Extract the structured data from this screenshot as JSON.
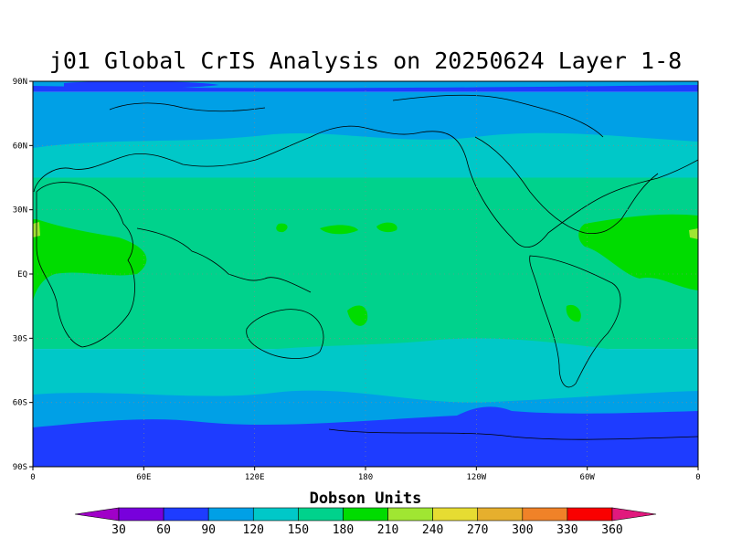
{
  "title": "j01 Global CrIS Analysis on 20250624 Layer 1-8",
  "units_label": "Dobson Units",
  "lat_ticks": [
    "90N",
    "60N",
    "30N",
    "EQ",
    "30S",
    "60S",
    "90S"
  ],
  "lon_ticks": [
    "0",
    "60E",
    "120E",
    "180",
    "120W",
    "60W",
    "0"
  ],
  "colorbar": {
    "values": [
      "30",
      "60",
      "90",
      "120",
      "150",
      "180",
      "210",
      "240",
      "270",
      "300",
      "330",
      "360"
    ],
    "colors": [
      "#a000c8",
      "#7800dc",
      "#1e3cff",
      "#00a0e6",
      "#00c8c8",
      "#00d28c",
      "#00dc00",
      "#a0e632",
      "#e6dc32",
      "#e6af2d",
      "#f08228",
      "#fa0000",
      "#e1197d"
    ]
  },
  "chart_data": {
    "type": "heatmap",
    "title": "j01 Global CrIS Analysis on 20250624 Layer 1-8",
    "colorbar_label": "Dobson Units",
    "x_ticks": [
      "0",
      "60E",
      "120E",
      "180",
      "120W",
      "60W",
      "0"
    ],
    "y_ticks": [
      "90N",
      "60N",
      "30N",
      "EQ",
      "30S",
      "60S",
      "90S"
    ],
    "xlim": [
      0,
      360
    ],
    "ylim": [
      -90,
      90
    ],
    "contour_levels": [
      30,
      60,
      90,
      120,
      150,
      180,
      210,
      240,
      270,
      300,
      330,
      360
    ],
    "zonal_bands": [
      {
        "lat_range": [
          85,
          90
        ],
        "value": 75
      },
      {
        "lat_range": [
          55,
          85
        ],
        "value": 105
      },
      {
        "lat_range": [
          45,
          55
        ],
        "value": 135
      },
      {
        "lat_range": [
          -35,
          45
        ],
        "value": 165
      },
      {
        "lat_range": [
          -45,
          -35
        ],
        "value": 135
      },
      {
        "lat_range": [
          -58,
          -45
        ],
        "value": 135
      },
      {
        "lat_range": [
          -68,
          -58
        ],
        "value": 105
      },
      {
        "lat_range": [
          -90,
          -68
        ],
        "value": 75
      }
    ]
  }
}
